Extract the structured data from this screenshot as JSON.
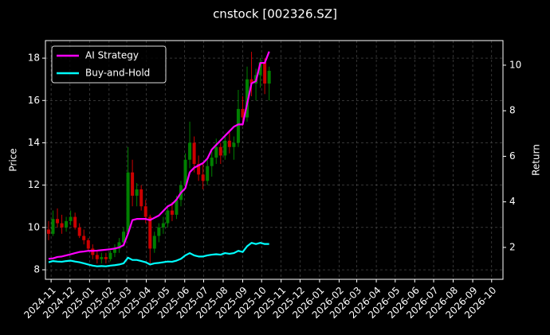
{
  "chart_data": {
    "type": "candlestick",
    "title": "cnstock [002326.SZ]",
    "ylabel": "Price",
    "y2label": "Return",
    "x": [
      "2024-10-28",
      "2024-11-04",
      "2024-11-11",
      "2024-11-18",
      "2024-11-25",
      "2024-12-02",
      "2024-12-09",
      "2024-12-16",
      "2024-12-23",
      "2024-12-30",
      "2025-01-06",
      "2025-01-13",
      "2025-01-20",
      "2025-01-27",
      "2025-02-03",
      "2025-02-10",
      "2025-02-17",
      "2025-02-24",
      "2025-03-03",
      "2025-03-10",
      "2025-03-17",
      "2025-03-24",
      "2025-03-31",
      "2025-04-07",
      "2025-04-14",
      "2025-04-21",
      "2025-04-28",
      "2025-05-05",
      "2025-05-12",
      "2025-05-19",
      "2025-05-26",
      "2025-06-02",
      "2025-06-09",
      "2025-06-16",
      "2025-06-23",
      "2025-06-30",
      "2025-07-07",
      "2025-07-14",
      "2025-07-21",
      "2025-07-28",
      "2025-08-04",
      "2025-08-11",
      "2025-08-18",
      "2025-08-25",
      "2025-09-01",
      "2025-09-08",
      "2025-09-15",
      "2025-09-22",
      "2025-09-29",
      "2025-10-06",
      "2025-10-13"
    ],
    "open": [
      9.9,
      9.7,
      10.4,
      10.2,
      10.0,
      10.3,
      10.5,
      10.0,
      9.6,
      9.4,
      9.0,
      8.7,
      8.5,
      8.6,
      8.5,
      8.8,
      9.0,
      9.3,
      9.8,
      12.6,
      11.5,
      11.8,
      11.0,
      10.5,
      9.0,
      9.6,
      10.0,
      10.2,
      10.8,
      10.6,
      11.3,
      12.0,
      13.2,
      14.0,
      13.0,
      12.5,
      12.2,
      12.9,
      13.3,
      13.8,
      13.4,
      14.1,
      13.8,
      14.0,
      15.6,
      15.2,
      17.0,
      16.8,
      17.2,
      17.8,
      16.8
    ],
    "high": [
      10.3,
      10.8,
      10.9,
      10.6,
      10.5,
      10.8,
      10.7,
      10.2,
      9.9,
      9.5,
      9.2,
      8.9,
      8.8,
      8.8,
      8.9,
      9.2,
      9.5,
      10.0,
      13.8,
      13.2,
      12.1,
      12.0,
      11.3,
      10.6,
      9.8,
      10.2,
      10.5,
      11.0,
      11.2,
      11.5,
      12.2,
      13.5,
      15.0,
      14.3,
      13.4,
      13.0,
      13.2,
      13.6,
      14.2,
      14.0,
      14.4,
      14.6,
      14.3,
      16.5,
      16.2,
      17.6,
      18.3,
      17.5,
      18.0,
      18.0,
      17.6
    ],
    "low": [
      9.4,
      9.6,
      10.0,
      9.7,
      9.8,
      10.1,
      9.9,
      9.5,
      9.2,
      8.9,
      8.5,
      8.3,
      8.3,
      8.3,
      8.4,
      8.6,
      8.8,
      9.1,
      9.7,
      11.0,
      11.0,
      10.8,
      10.2,
      8.3,
      8.8,
      9.3,
      9.7,
      10.0,
      10.3,
      10.4,
      11.0,
      11.8,
      12.8,
      12.6,
      12.2,
      11.8,
      12.0,
      12.4,
      13.0,
      13.0,
      13.2,
      13.5,
      13.2,
      13.8,
      14.8,
      15.0,
      16.2,
      16.0,
      16.6,
      16.3,
      16.0
    ],
    "close": [
      9.7,
      10.4,
      10.2,
      10.0,
      10.3,
      10.5,
      10.0,
      9.6,
      9.4,
      9.0,
      8.7,
      8.5,
      8.6,
      8.5,
      8.8,
      9.0,
      9.3,
      9.8,
      12.6,
      11.5,
      11.8,
      11.0,
      10.5,
      9.0,
      9.6,
      10.0,
      10.2,
      10.8,
      10.6,
      11.3,
      12.0,
      13.2,
      14.0,
      13.0,
      12.5,
      12.2,
      12.9,
      13.3,
      13.8,
      13.4,
      14.1,
      13.8,
      14.0,
      15.6,
      15.2,
      17.0,
      16.8,
      17.2,
      17.8,
      16.8,
      17.4
    ],
    "up_color": "#008000",
    "down_color": "#cc0000",
    "series": [
      {
        "name": "AI Strategy",
        "color": "#ff00ff",
        "axis": "y2",
        "values": [
          1.5,
          1.52,
          1.58,
          1.6,
          1.65,
          1.7,
          1.75,
          1.8,
          1.82,
          1.85,
          1.85,
          1.86,
          1.88,
          1.9,
          1.92,
          1.95,
          2.0,
          2.1,
          2.6,
          3.2,
          3.25,
          3.25,
          3.25,
          3.2,
          3.3,
          3.4,
          3.6,
          3.8,
          3.9,
          4.1,
          4.4,
          4.6,
          5.3,
          5.5,
          5.6,
          5.7,
          5.9,
          6.3,
          6.5,
          6.7,
          6.9,
          7.1,
          7.3,
          7.4,
          7.4,
          8.3,
          9.2,
          9.3,
          10.1,
          10.1,
          10.6
        ]
      },
      {
        "name": "Buy-and-Hold",
        "color": "#00ffff",
        "axis": "y2",
        "values": [
          1.35,
          1.4,
          1.38,
          1.37,
          1.4,
          1.42,
          1.38,
          1.35,
          1.3,
          1.25,
          1.2,
          1.17,
          1.18,
          1.17,
          1.2,
          1.22,
          1.25,
          1.3,
          1.55,
          1.45,
          1.45,
          1.4,
          1.35,
          1.25,
          1.3,
          1.32,
          1.35,
          1.38,
          1.37,
          1.42,
          1.5,
          1.65,
          1.75,
          1.65,
          1.6,
          1.6,
          1.65,
          1.68,
          1.7,
          1.68,
          1.75,
          1.72,
          1.75,
          1.85,
          1.8,
          2.05,
          2.2,
          2.15,
          2.2,
          2.15,
          2.15
        ]
      }
    ],
    "xlim": [
      "2024-10-23",
      "2026-10-19"
    ],
    "xticks": [
      "2024-11",
      "2024-12",
      "2025-01",
      "2025-02",
      "2025-03",
      "2025-04",
      "2025-05",
      "2025-06",
      "2025-07",
      "2025-08",
      "2025-09",
      "2025-10",
      "2025-11",
      "2025-12",
      "2026-01",
      "2026-02",
      "2026-03",
      "2026-04",
      "2026-05",
      "2026-06",
      "2026-07",
      "2026-08",
      "2026-09",
      "2026-10"
    ],
    "ylim": [
      7.55,
      18.83
    ],
    "yticks": [
      8,
      10,
      12,
      14,
      16,
      18
    ],
    "y2lim": [
      0.6,
      11.08
    ],
    "y2ticks": [
      2,
      4,
      6,
      8,
      10
    ],
    "grid": true,
    "legend": "upper left"
  }
}
